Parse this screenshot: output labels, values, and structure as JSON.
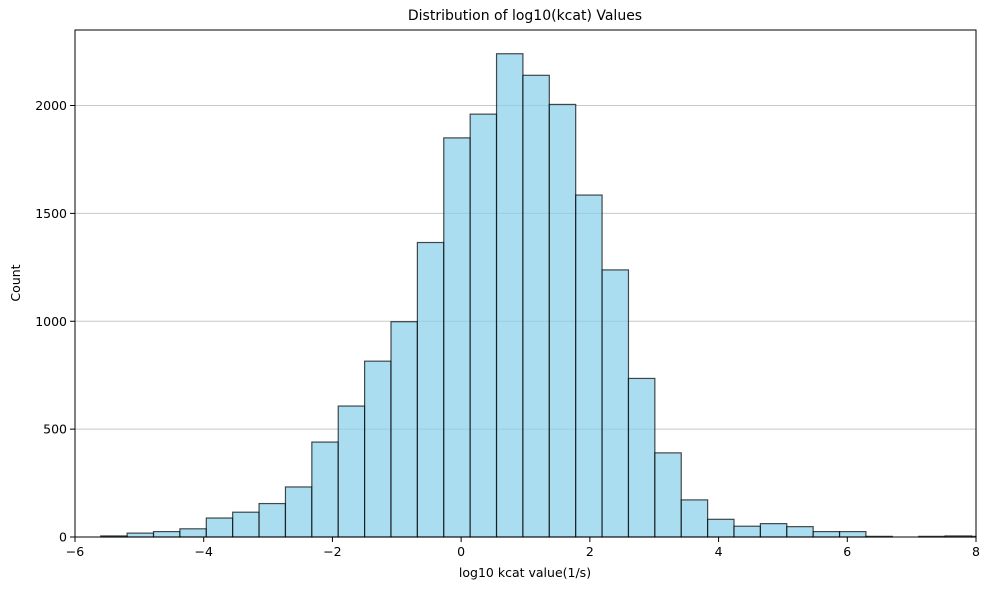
{
  "chart_data": {
    "type": "bar",
    "title": "Distribution of log10(kcat) Values",
    "xlabel": "log10 kcat value(1/s)",
    "ylabel": "Count",
    "xlim": [
      -6,
      8
    ],
    "ylim": [
      0,
      2350
    ],
    "grid": {
      "y": true,
      "x": false
    },
    "bar_color": "#87CEEB",
    "bar_edge_color": "#000000",
    "bin_edges": [
      -5.6,
      -5.19,
      -4.78,
      -4.37,
      -3.96,
      -3.55,
      -3.14,
      -2.73,
      -2.32,
      -1.91,
      -1.5,
      -1.09,
      -0.68,
      -0.27,
      0.14,
      0.55,
      0.96,
      1.37,
      1.78,
      2.19,
      2.6,
      3.01,
      3.42,
      3.83,
      4.24,
      4.65,
      5.06,
      5.47,
      5.88,
      6.29,
      6.7,
      7.11,
      7.52,
      7.93,
      8.34
    ],
    "values": [
      5,
      18,
      25,
      38,
      88,
      115,
      155,
      232,
      440,
      607,
      815,
      998,
      1365,
      1850,
      1960,
      2240,
      2140,
      2005,
      1585,
      1238,
      735,
      390,
      172,
      82,
      50,
      62,
      48,
      25,
      25,
      3,
      0,
      3,
      5,
      3
    ],
    "x_ticks": [
      {
        "value": -6,
        "label": "−6"
      },
      {
        "value": -4,
        "label": "−4"
      },
      {
        "value": -2,
        "label": "−2"
      },
      {
        "value": 0,
        "label": "0"
      },
      {
        "value": 2,
        "label": "2"
      },
      {
        "value": 4,
        "label": "4"
      },
      {
        "value": 6,
        "label": "6"
      },
      {
        "value": 8,
        "label": "8"
      }
    ],
    "y_ticks": [
      {
        "value": 0,
        "label": "0"
      },
      {
        "value": 500,
        "label": "500"
      },
      {
        "value": 1000,
        "label": "1000"
      },
      {
        "value": 1500,
        "label": "1500"
      },
      {
        "value": 2000,
        "label": "2000"
      }
    ]
  }
}
